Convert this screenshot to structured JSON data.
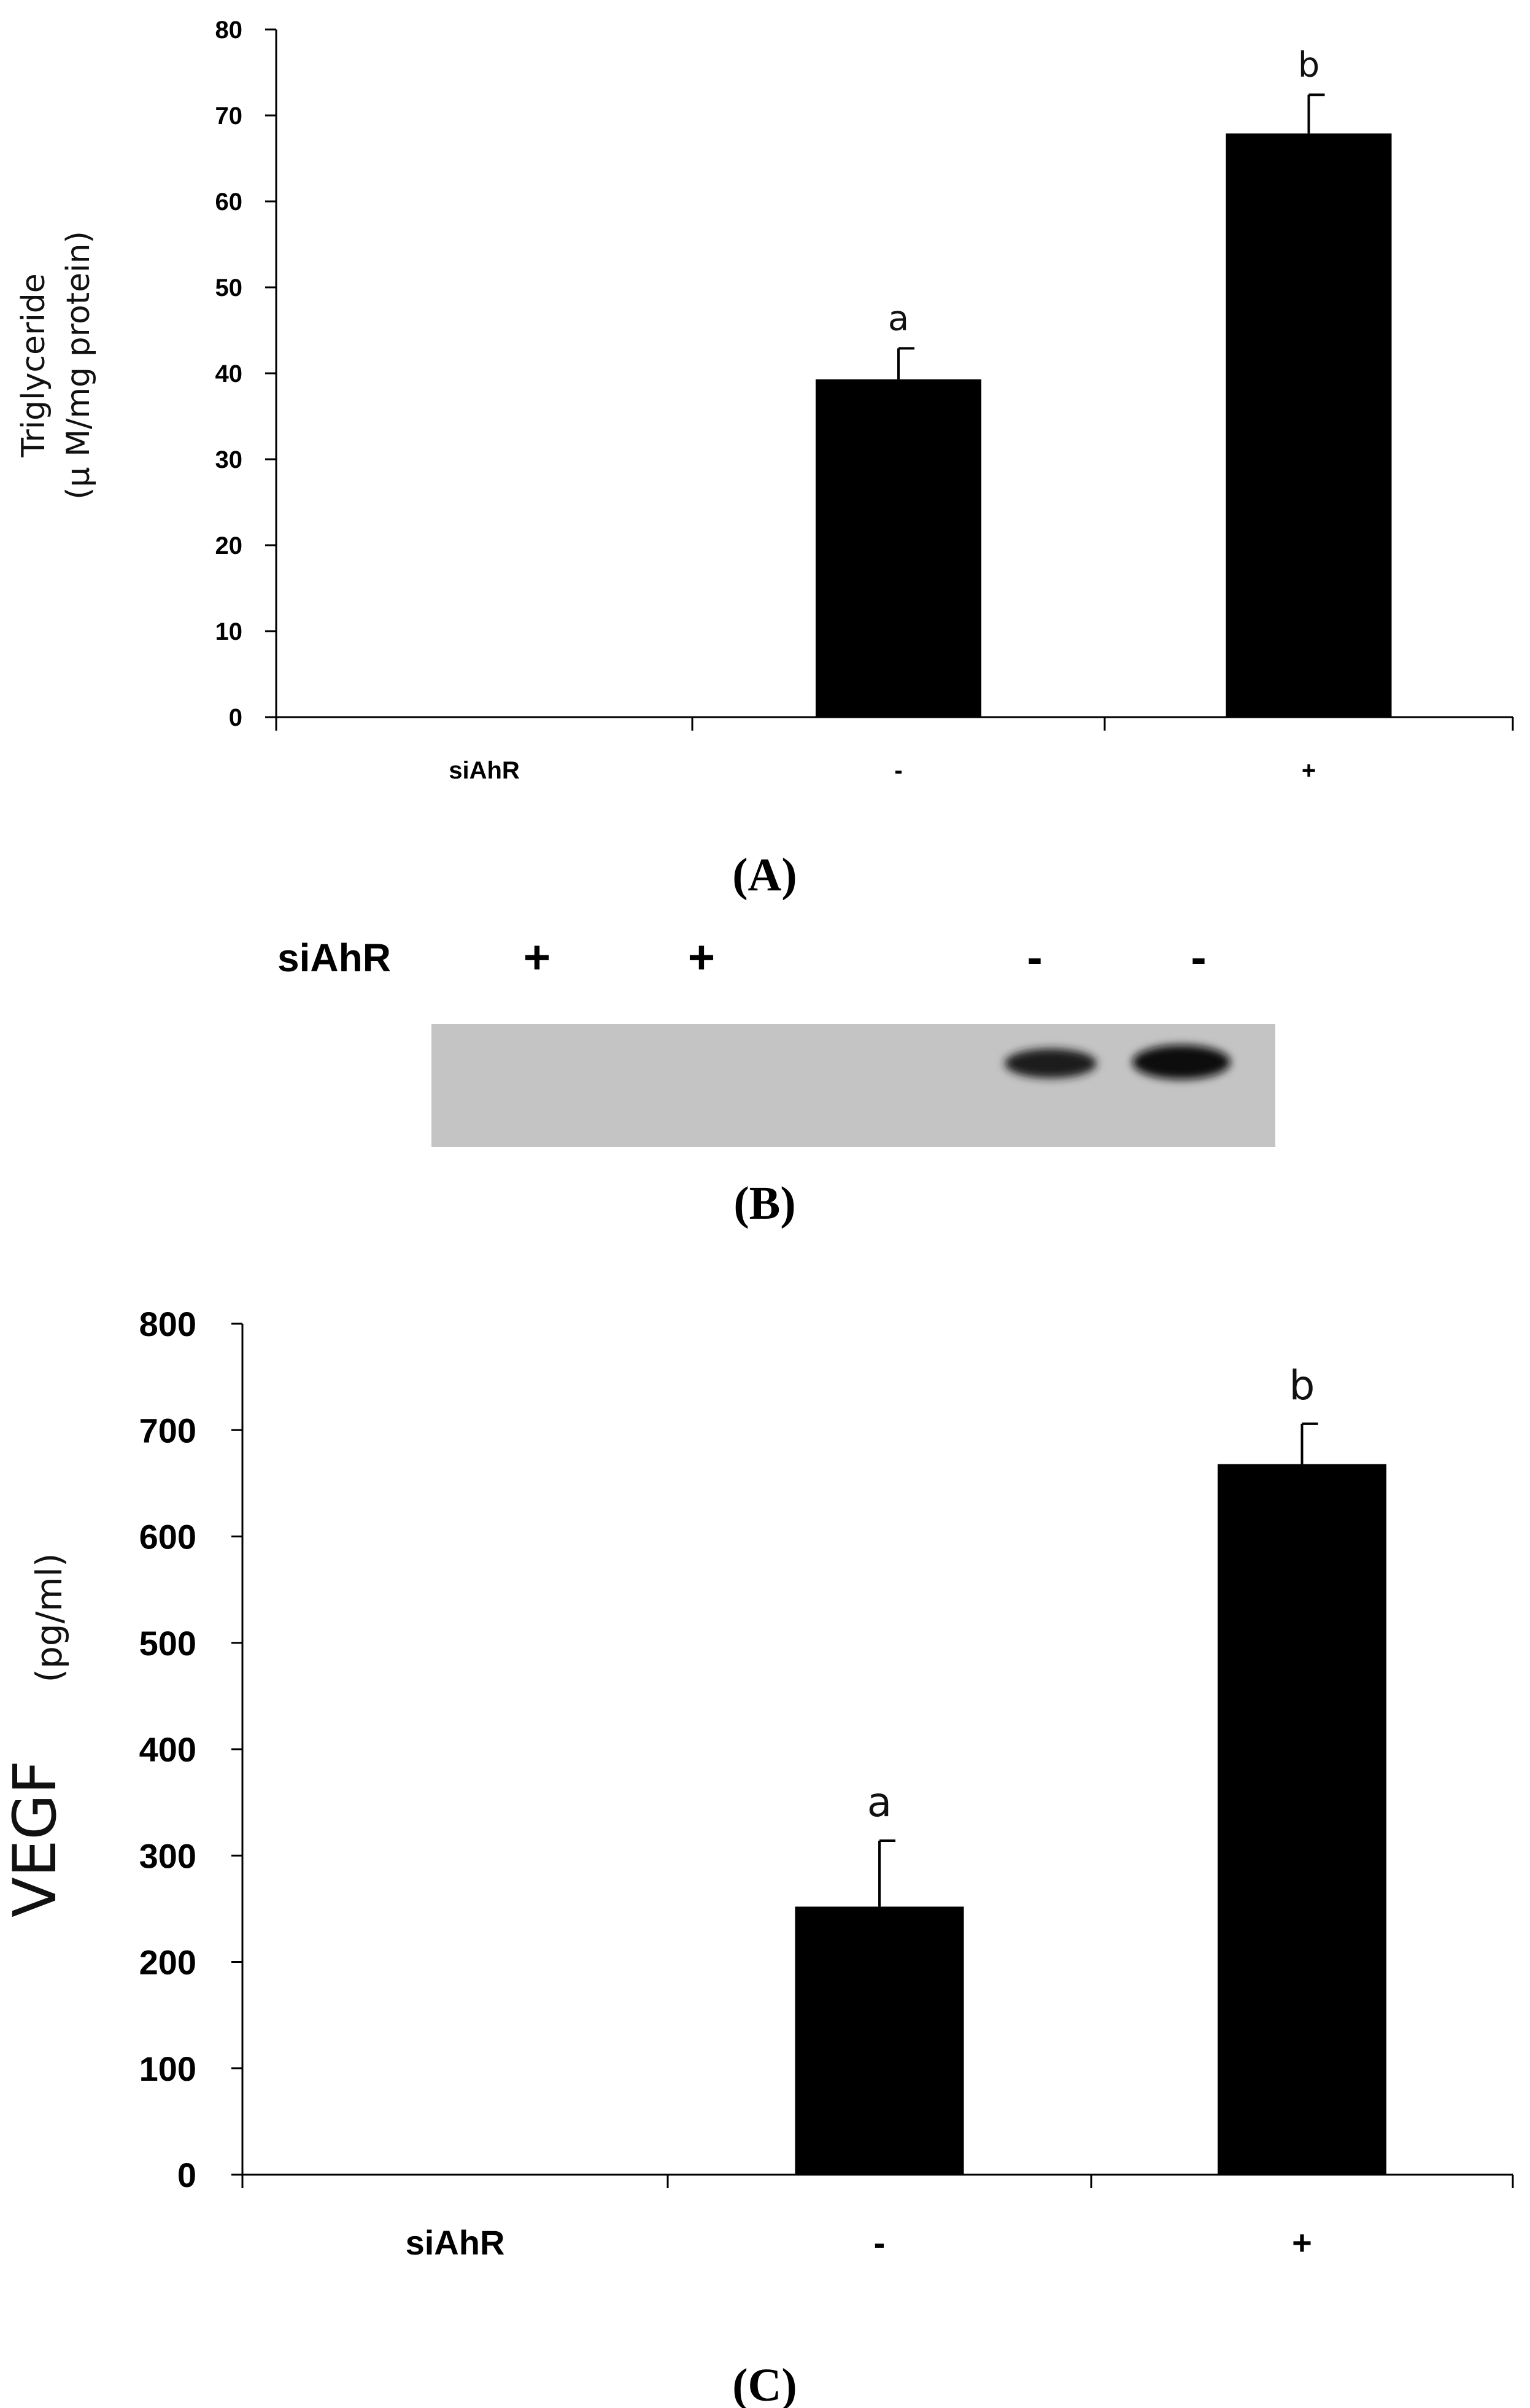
{
  "chart_data": [
    {
      "panel": "(A)",
      "type": "bar",
      "categories": [
        "siAhR",
        "-",
        "+"
      ],
      "values": [
        null,
        39.3,
        67.9
      ],
      "errors": [
        null,
        3.6,
        4.5
      ],
      "significance": [
        "",
        "a",
        "b"
      ],
      "ylabel": "Triglyceride",
      "ylabel_unit": "(μ M/mg protein)",
      "yticks": [
        "0",
        "10",
        "20",
        "30",
        "40",
        "50",
        "60",
        "70",
        "80"
      ],
      "ylim": [
        0,
        80
      ],
      "grid": false,
      "bar_color": "#000000"
    },
    {
      "panel": "(B)",
      "type": "blot",
      "row_label": "siAhR",
      "lanes": [
        "+",
        "+",
        "-",
        "-"
      ]
    },
    {
      "panel": "(C)",
      "type": "bar",
      "categories": [
        "siAhR",
        "-",
        "+"
      ],
      "values": [
        null,
        252,
        668
      ],
      "errors": [
        null,
        62,
        38
      ],
      "significance": [
        "",
        "a",
        "b"
      ],
      "ylabel": "VEGF",
      "ylabel_unit": "(pg/ml)",
      "yticks": [
        "0",
        "100",
        "200",
        "300",
        "400",
        "500",
        "600",
        "700",
        "800"
      ],
      "ylim": [
        0,
        800
      ],
      "grid": false,
      "bar_color": "#000000"
    }
  ]
}
